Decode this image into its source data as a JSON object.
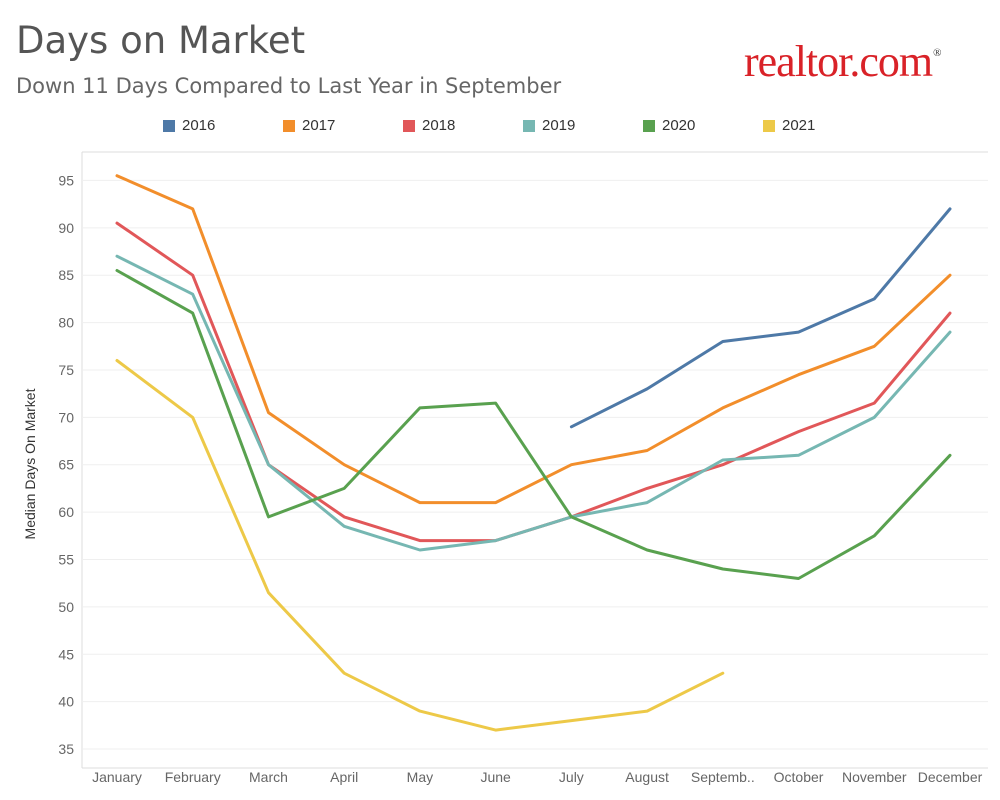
{
  "header": {
    "title": "Days on Market",
    "subtitle": "Down 11 Days Compared to Last Year in September",
    "logo_text": "realtor.com",
    "logo_mark": "®"
  },
  "chart_data": {
    "type": "line",
    "title": "Days on Market",
    "xlabel": "",
    "ylabel": "Median Days On Market",
    "ylim": [
      33,
      98
    ],
    "yticks": [
      35,
      40,
      45,
      50,
      55,
      60,
      65,
      70,
      75,
      80,
      85,
      90,
      95
    ],
    "grid": true,
    "legend_position": "top",
    "categories": [
      "January",
      "February",
      "March",
      "April",
      "May",
      "June",
      "July",
      "August",
      "Septemb..",
      "October",
      "November",
      "December"
    ],
    "series": [
      {
        "name": "2016",
        "color": "#4e79a7",
        "values": [
          null,
          null,
          null,
          null,
          null,
          null,
          69,
          73,
          78,
          79,
          82.5,
          92
        ]
      },
      {
        "name": "2017",
        "color": "#f28e2b",
        "values": [
          95.5,
          92,
          70.5,
          65,
          61,
          61,
          65,
          66.5,
          71,
          74.5,
          77.5,
          85
        ]
      },
      {
        "name": "2018",
        "color": "#e15759",
        "values": [
          90.5,
          85,
          65,
          59.5,
          57,
          57,
          59.5,
          62.5,
          65,
          68.5,
          71.5,
          81
        ]
      },
      {
        "name": "2019",
        "color": "#76b7b2",
        "values": [
          87,
          83,
          65,
          58.5,
          56,
          57,
          59.5,
          61,
          65.5,
          66,
          70,
          79
        ]
      },
      {
        "name": "2020",
        "color": "#59a14f",
        "values": [
          85.5,
          81,
          59.5,
          62.5,
          71,
          71.5,
          59.5,
          56,
          54,
          53,
          57.5,
          66
        ]
      },
      {
        "name": "2021",
        "color": "#edc948",
        "values": [
          76,
          70,
          51.5,
          43,
          39,
          37,
          38,
          39,
          43,
          null,
          null,
          null
        ]
      }
    ]
  }
}
